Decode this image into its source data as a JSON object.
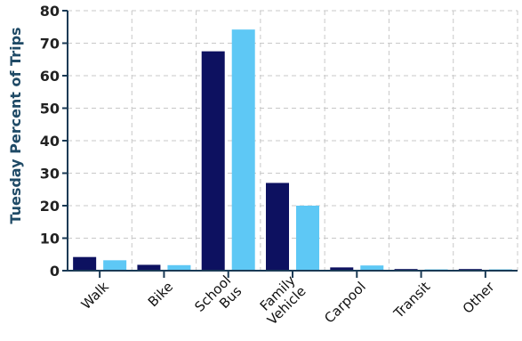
{
  "chart_data": {
    "type": "bar",
    "ylabel": "Tuesday Percent of Trips",
    "ylim": [
      0,
      80
    ],
    "yticks": [
      "0",
      "10",
      "20",
      "30",
      "40",
      "50",
      "60",
      "70",
      "80"
    ],
    "grid": true,
    "categories": [
      [
        "Walk"
      ],
      [
        "Bike"
      ],
      [
        "School",
        "Bus"
      ],
      [
        "Family",
        "Vehicle"
      ],
      [
        "Carpool"
      ],
      [
        "Transit"
      ],
      [
        "Other"
      ]
    ],
    "series": [
      {
        "values": [
          4.2,
          1.8,
          67.5,
          27,
          1,
          0.5,
          0.5
        ],
        "color": "#0d1160"
      },
      {
        "values": [
          3.2,
          1.7,
          74.2,
          20,
          1.6,
          0.4,
          0.4
        ],
        "color": "#5ec8f5"
      }
    ]
  }
}
